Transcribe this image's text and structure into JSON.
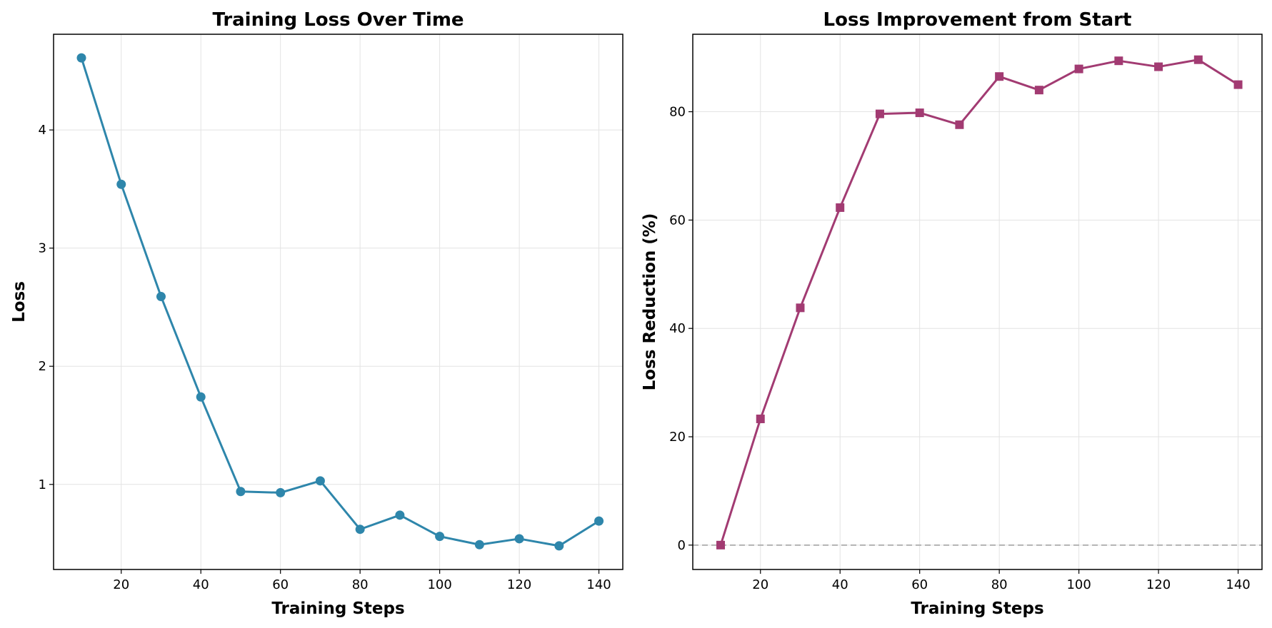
{
  "chart_data": [
    {
      "type": "line",
      "title": "Training Loss Over Time",
      "xlabel": "Training Steps",
      "ylabel": "Loss",
      "xlim": [
        3,
        146
      ],
      "ylim": [
        0.28,
        4.81
      ],
      "xticks": [
        20,
        40,
        60,
        80,
        100,
        120,
        140
      ],
      "yticks": [
        1,
        2,
        3,
        4
      ],
      "grid": true,
      "marker": "circle",
      "color": "#2e86ab",
      "x": [
        10,
        20,
        30,
        40,
        50,
        60,
        70,
        80,
        90,
        100,
        110,
        120,
        130,
        140
      ],
      "series": [
        {
          "values": [
            4.61,
            3.54,
            2.59,
            1.74,
            0.94,
            0.93,
            1.03,
            0.62,
            0.74,
            0.56,
            0.49,
            0.54,
            0.48,
            0.69
          ]
        }
      ]
    },
    {
      "type": "line",
      "title": "Loss Improvement from Start",
      "xlabel": "Training Steps",
      "ylabel": "Loss Reduction (%)",
      "xlim": [
        3,
        146
      ],
      "ylim": [
        -4.5,
        94.3
      ],
      "xticks": [
        20,
        40,
        60,
        80,
        100,
        120,
        140
      ],
      "yticks": [
        0,
        20,
        40,
        60,
        80
      ],
      "grid": true,
      "marker": "square",
      "color": "#a23b72",
      "reference_line": {
        "y": 0,
        "style": "dashed",
        "color": "#b3b3b3"
      },
      "x": [
        10,
        20,
        30,
        40,
        50,
        60,
        70,
        80,
        90,
        100,
        110,
        120,
        130,
        140
      ],
      "series": [
        {
          "values": [
            0,
            23.3,
            43.8,
            62.3,
            79.6,
            79.8,
            77.6,
            86.5,
            84.0,
            87.9,
            89.4,
            88.3,
            89.6,
            85.0
          ]
        }
      ]
    }
  ]
}
